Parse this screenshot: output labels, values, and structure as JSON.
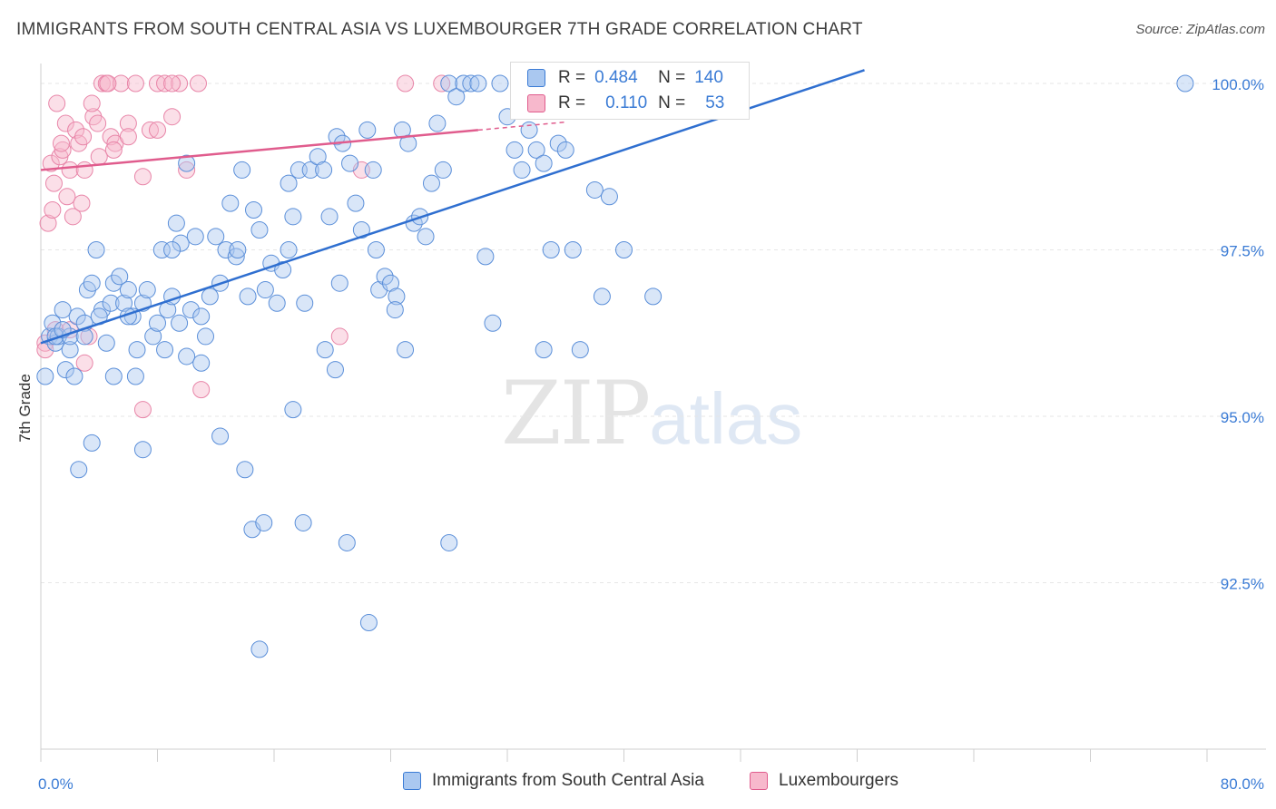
{
  "title": "IMMIGRANTS FROM SOUTH CENTRAL ASIA VS LUXEMBOURGER 7TH GRADE CORRELATION CHART",
  "source": "Source: ZipAtlas.com",
  "watermark": {
    "zip": "ZIP",
    "atlas": "atlas"
  },
  "legend": {
    "series1_label": "Immigrants from South Central Asia",
    "series2_label": "Luxembourgers"
  },
  "inset": {
    "r_label": "R =",
    "n_label": "N =",
    "r1": "0.484",
    "n1": "140",
    "r2": "0.110",
    "n2": "53"
  },
  "colors": {
    "blue": "#3a7bd5",
    "blue_fill": "#aac8f0",
    "pink": "#e05c8d",
    "pink_fill": "#f7b8cc"
  },
  "chart_data": {
    "type": "scatter",
    "ylabel": "7th Grade",
    "xlim": [
      0,
      80
    ],
    "ylim": [
      90.0,
      100.3
    ],
    "x_tick_labels": [
      "0.0%",
      "80.0%"
    ],
    "y_ticks": [
      92.5,
      95.0,
      97.5,
      100.0
    ],
    "y_tick_labels": [
      "92.5%",
      "95.0%",
      "97.5%",
      "100.0%"
    ],
    "grid": true,
    "series": [
      {
        "name": "Immigrants from South Central Asia",
        "color": "#3a7bd5",
        "trend": {
          "x": [
            0,
            56.5
          ],
          "y": [
            96.1,
            100.2
          ]
        },
        "points": [
          [
            0.3,
            95.6
          ],
          [
            0.6,
            96.2
          ],
          [
            0.8,
            96.4
          ],
          [
            1.0,
            96.1
          ],
          [
            1.2,
            96.2
          ],
          [
            1.5,
            96.6
          ],
          [
            1.7,
            95.7
          ],
          [
            2.0,
            96.0
          ],
          [
            2.5,
            96.5
          ],
          [
            3.0,
            96.4
          ],
          [
            3.2,
            96.9
          ],
          [
            3.5,
            97.0
          ],
          [
            3.8,
            97.5
          ],
          [
            4.2,
            96.6
          ],
          [
            4.5,
            96.1
          ],
          [
            4.8,
            96.7
          ],
          [
            5.0,
            97.0
          ],
          [
            5.4,
            97.1
          ],
          [
            5.7,
            96.7
          ],
          [
            6.0,
            96.9
          ],
          [
            6.3,
            96.5
          ],
          [
            6.6,
            96.0
          ],
          [
            7.0,
            96.7
          ],
          [
            7.3,
            96.9
          ],
          [
            7.7,
            96.2
          ],
          [
            8.0,
            96.4
          ],
          [
            8.3,
            97.5
          ],
          [
            8.7,
            96.6
          ],
          [
            9.0,
            96.8
          ],
          [
            9.3,
            97.9
          ],
          [
            9.6,
            97.6
          ],
          [
            10.0,
            98.8
          ],
          [
            10.3,
            96.6
          ],
          [
            10.6,
            97.7
          ],
          [
            11.0,
            96.5
          ],
          [
            11.3,
            96.2
          ],
          [
            11.6,
            96.8
          ],
          [
            12.0,
            97.7
          ],
          [
            12.3,
            97.0
          ],
          [
            12.7,
            97.5
          ],
          [
            13.0,
            98.2
          ],
          [
            13.4,
            97.4
          ],
          [
            13.8,
            98.7
          ],
          [
            14.2,
            96.8
          ],
          [
            14.6,
            98.1
          ],
          [
            15.0,
            97.8
          ],
          [
            15.4,
            96.9
          ],
          [
            15.8,
            97.3
          ],
          [
            16.2,
            96.7
          ],
          [
            16.6,
            97.2
          ],
          [
            17.0,
            98.5
          ],
          [
            17.3,
            98.0
          ],
          [
            17.7,
            98.7
          ],
          [
            18.1,
            96.7
          ],
          [
            18.5,
            98.7
          ],
          [
            19.0,
            98.9
          ],
          [
            19.4,
            98.7
          ],
          [
            19.8,
            98.0
          ],
          [
            20.3,
            99.2
          ],
          [
            20.7,
            99.1
          ],
          [
            21.2,
            98.8
          ],
          [
            21.6,
            98.2
          ],
          [
            22.0,
            97.8
          ],
          [
            22.4,
            99.3
          ],
          [
            22.8,
            98.7
          ],
          [
            23.2,
            96.9
          ],
          [
            23.6,
            97.1
          ],
          [
            24.0,
            97.0
          ],
          [
            24.4,
            96.8
          ],
          [
            24.8,
            99.3
          ],
          [
            25.2,
            99.1
          ],
          [
            25.6,
            97.9
          ],
          [
            26.0,
            98.0
          ],
          [
            26.4,
            97.7
          ],
          [
            26.8,
            98.5
          ],
          [
            27.2,
            99.4
          ],
          [
            27.6,
            98.7
          ],
          [
            28.0,
            100.0
          ],
          [
            28.5,
            99.8
          ],
          [
            29.0,
            100.0
          ],
          [
            29.5,
            100.0
          ],
          [
            30.0,
            100.0
          ],
          [
            30.5,
            97.4
          ],
          [
            31.0,
            96.4
          ],
          [
            31.5,
            100.0
          ],
          [
            32.0,
            99.5
          ],
          [
            32.5,
            99.0
          ],
          [
            33.0,
            98.7
          ],
          [
            33.5,
            99.3
          ],
          [
            34.0,
            99.0
          ],
          [
            34.5,
            98.8
          ],
          [
            35.0,
            97.5
          ],
          [
            35.5,
            99.1
          ],
          [
            36.0,
            99.0
          ],
          [
            36.5,
            97.5
          ],
          [
            37.0,
            96.0
          ],
          [
            38.0,
            98.4
          ],
          [
            38.5,
            96.8
          ],
          [
            39.0,
            100.0
          ],
          [
            40.0,
            100.0
          ],
          [
            1.0,
            96.2
          ],
          [
            2.3,
            95.6
          ],
          [
            3.5,
            94.6
          ],
          [
            2.6,
            94.2
          ],
          [
            5.0,
            95.6
          ],
          [
            6.5,
            95.6
          ],
          [
            7.0,
            94.5
          ],
          [
            10.0,
            95.9
          ],
          [
            11.0,
            95.8
          ],
          [
            12.3,
            94.7
          ],
          [
            14.0,
            94.2
          ],
          [
            14.5,
            93.3
          ],
          [
            15.3,
            93.4
          ],
          [
            17.3,
            95.1
          ],
          [
            18.0,
            93.4
          ],
          [
            20.2,
            95.7
          ],
          [
            21.0,
            93.1
          ],
          [
            22.5,
            91.9
          ],
          [
            15.0,
            91.5
          ],
          [
            24.3,
            96.6
          ],
          [
            28.0,
            93.1
          ],
          [
            2.0,
            96.2
          ],
          [
            3.0,
            96.2
          ],
          [
            8.5,
            96.0
          ],
          [
            9.5,
            96.4
          ],
          [
            1.5,
            96.3
          ],
          [
            4.0,
            96.5
          ],
          [
            6.0,
            96.5
          ],
          [
            19.5,
            96.0
          ],
          [
            25.0,
            96.0
          ],
          [
            34.5,
            96.0
          ],
          [
            39.0,
            98.3
          ],
          [
            40.0,
            97.5
          ],
          [
            42.0,
            96.8
          ],
          [
            78.5,
            100.0
          ],
          [
            9.0,
            97.5
          ],
          [
            13.5,
            97.5
          ],
          [
            17.0,
            97.5
          ],
          [
            20.5,
            97.0
          ],
          [
            23.0,
            97.5
          ]
        ]
      },
      {
        "name": "Luxembourgers",
        "color": "#e05c8d",
        "trend": {
          "x": [
            0,
            30
          ],
          "y": [
            98.7,
            99.3
          ]
        },
        "points": [
          [
            0.3,
            96.1
          ],
          [
            0.5,
            97.9
          ],
          [
            0.7,
            98.8
          ],
          [
            0.9,
            98.5
          ],
          [
            1.1,
            99.7
          ],
          [
            1.3,
            98.9
          ],
          [
            1.5,
            99.0
          ],
          [
            1.7,
            99.4
          ],
          [
            2.0,
            98.7
          ],
          [
            2.2,
            98.0
          ],
          [
            2.4,
            99.3
          ],
          [
            2.6,
            99.1
          ],
          [
            2.8,
            98.2
          ],
          [
            3.0,
            98.7
          ],
          [
            3.3,
            96.2
          ],
          [
            3.6,
            99.5
          ],
          [
            3.9,
            99.4
          ],
          [
            4.2,
            100.0
          ],
          [
            4.5,
            100.0
          ],
          [
            4.8,
            99.2
          ],
          [
            5.1,
            99.1
          ],
          [
            5.5,
            100.0
          ],
          [
            6.0,
            99.4
          ],
          [
            6.5,
            100.0
          ],
          [
            7.0,
            98.6
          ],
          [
            7.5,
            99.3
          ],
          [
            8.0,
            100.0
          ],
          [
            8.5,
            100.0
          ],
          [
            9.0,
            99.5
          ],
          [
            9.5,
            100.0
          ],
          [
            10.0,
            98.7
          ],
          [
            10.8,
            100.0
          ],
          [
            11.0,
            95.4
          ],
          [
            0.3,
            96.0
          ],
          [
            1.0,
            96.3
          ],
          [
            2.0,
            96.3
          ],
          [
            3.0,
            95.8
          ],
          [
            7.0,
            95.1
          ],
          [
            20.5,
            96.2
          ],
          [
            22.0,
            98.7
          ],
          [
            25.0,
            100.0
          ],
          [
            1.4,
            99.1
          ],
          [
            2.9,
            99.2
          ],
          [
            4.0,
            98.9
          ],
          [
            5.0,
            99.0
          ],
          [
            1.8,
            98.3
          ],
          [
            0.8,
            98.1
          ],
          [
            3.5,
            99.7
          ],
          [
            6.0,
            99.2
          ],
          [
            8.0,
            99.3
          ],
          [
            4.6,
            100.0
          ],
          [
            9.0,
            100.0
          ],
          [
            27.5,
            100.0
          ]
        ]
      }
    ]
  }
}
